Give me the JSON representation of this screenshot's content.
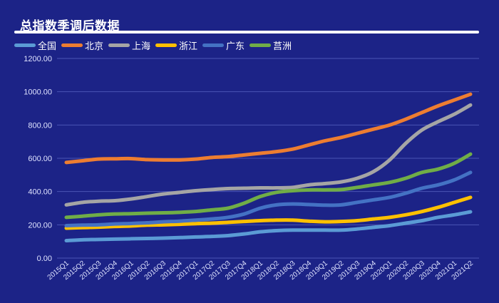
{
  "chart_data": {
    "type": "line",
    "title": "总指数季调后数据",
    "xlabel": "",
    "ylabel": "",
    "ylim": [
      0,
      1200
    ],
    "yticks": [
      "0.00",
      "200.00",
      "400.00",
      "600.00",
      "800.00",
      "1000.00",
      "1200.00"
    ],
    "grid": true,
    "legend_position": "top-left",
    "categories": [
      "2015Q1",
      "2015Q2",
      "2015Q3",
      "2015Q4",
      "2016Q1",
      "2016Q2",
      "2016Q3",
      "2016Q4",
      "2017Q1",
      "2017Q2",
      "2017Q3",
      "2017Q4",
      "2018Q1",
      "2018Q2",
      "2018Q3",
      "2018Q4",
      "2019Q1",
      "2019Q2",
      "2019Q3",
      "2019Q4",
      "2020Q1",
      "2020Q2",
      "2020Q3",
      "2020Q4",
      "2021Q1",
      "2021Q2"
    ],
    "series": [
      {
        "name": "全国",
        "color": "#5b9bd5",
        "values": [
          105,
          110,
          112,
          114,
          116,
          118,
          120,
          123,
          127,
          130,
          135,
          145,
          158,
          165,
          168,
          168,
          168,
          168,
          175,
          185,
          195,
          210,
          225,
          245,
          260,
          278
        ]
      },
      {
        "name": "北京",
        "color": "#ed7d31",
        "values": [
          575,
          585,
          595,
          597,
          598,
          592,
          590,
          590,
          595,
          605,
          610,
          620,
          630,
          640,
          655,
          680,
          705,
          725,
          750,
          775,
          800,
          835,
          875,
          915,
          950,
          985
        ]
      },
      {
        "name": "上海",
        "color": "#a5a5a5",
        "values": [
          320,
          335,
          342,
          345,
          355,
          370,
          385,
          395,
          405,
          412,
          418,
          420,
          422,
          422,
          425,
          440,
          448,
          458,
          480,
          520,
          590,
          690,
          770,
          820,
          865,
          920
        ]
      },
      {
        "name": "浙江",
        "color": "#ffc000",
        "values": [
          180,
          183,
          186,
          190,
          193,
          198,
          200,
          203,
          207,
          210,
          215,
          220,
          225,
          228,
          228,
          222,
          218,
          220,
          225,
          235,
          245,
          260,
          280,
          305,
          335,
          365
        ]
      },
      {
        "name": "广东",
        "color": "#4472c4",
        "values": [
          195,
          198,
          200,
          205,
          208,
          212,
          218,
          222,
          228,
          235,
          245,
          265,
          300,
          320,
          325,
          322,
          318,
          320,
          335,
          350,
          365,
          390,
          420,
          440,
          470,
          515
        ]
      },
      {
        "name": "莒洲",
        "color": "#70ad47",
        "values": [
          245,
          252,
          260,
          265,
          267,
          270,
          272,
          275,
          280,
          290,
          300,
          330,
          370,
          395,
          405,
          410,
          410,
          412,
          425,
          440,
          455,
          480,
          515,
          535,
          570,
          625
        ]
      }
    ]
  },
  "colors": {
    "background": "#1c2387",
    "gridline": "#4a55b5",
    "text": "#ffffff"
  }
}
